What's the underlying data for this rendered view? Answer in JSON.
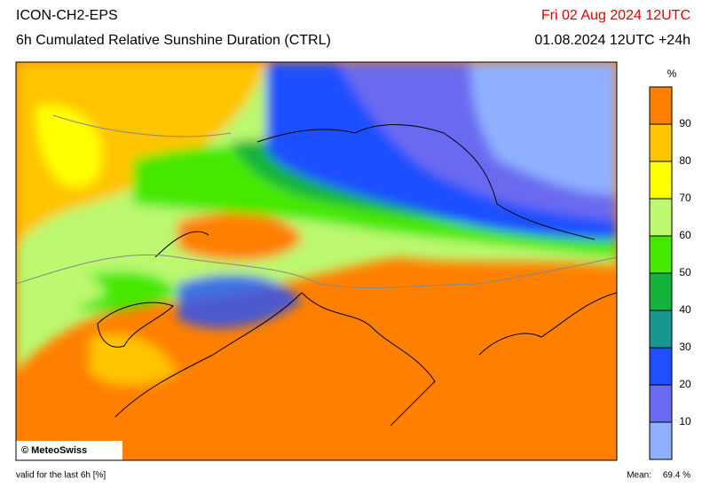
{
  "header": {
    "model": "ICON-CH2-EPS",
    "title": "6h Cumulated Relative Sunshine Duration (CTRL)",
    "date": "Fri 02 Aug 2024 12UTC",
    "run": "01.08.2024 12UTC +24h"
  },
  "colorbar": {
    "unit": "%",
    "range": [
      0,
      100
    ],
    "ticks": [
      10,
      20,
      30,
      40,
      50,
      60,
      70,
      80,
      90
    ],
    "colors": [
      "#8fb0ff",
      "#6a6af0",
      "#1e50ff",
      "#18968f",
      "#14b43c",
      "#46e800",
      "#bcf870",
      "#ffff00",
      "#ffc400",
      "#ff8000"
    ]
  },
  "copyright": "© MeteoSwiss",
  "footer": {
    "validity": "valid for the last 6h [%]",
    "mean_label": "Mean:",
    "mean": "69.4 %"
  }
}
